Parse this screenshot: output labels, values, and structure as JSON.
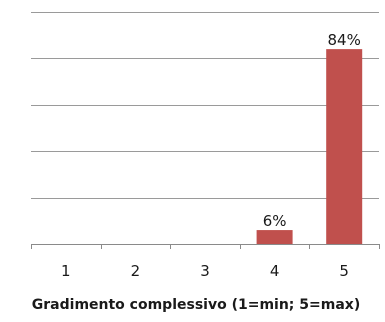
{
  "chart_data": {
    "type": "bar",
    "categories": [
      "1",
      "2",
      "3",
      "4",
      "5"
    ],
    "values": [
      0,
      0,
      0,
      6,
      84
    ],
    "data_labels": [
      "",
      "",
      "",
      "6%",
      "84%"
    ],
    "xlabel": "Gradimento complessivo (1=min; 5=max)",
    "ylabel": "",
    "ylim": [
      0,
      100
    ],
    "ytick_step": 20,
    "show_ytick_labels": false,
    "grid": true,
    "legend": "none",
    "bar_color": "#c0504d"
  }
}
